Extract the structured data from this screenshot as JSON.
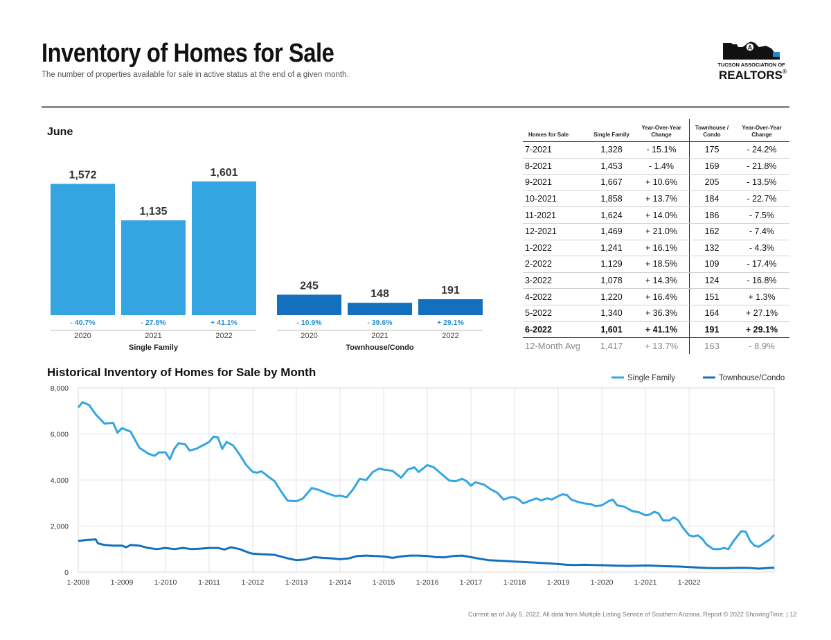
{
  "header": {
    "title": "Inventory of Homes for Sale",
    "subtitle": "The number of properties available for sale in active status at the end of a given month.",
    "logo_line1": "TUCSON ASSOCIATION OF",
    "logo_line2": "REALTORS",
    "logo_mark": "®"
  },
  "colors": {
    "single_family": "#35a5e2",
    "townhouse": "#1370bf",
    "change_text": "#2a8fd0"
  },
  "chart_data": [
    {
      "type": "bar",
      "title": "June",
      "groups": [
        {
          "name": "Single Family",
          "categories": [
            "2020",
            "2021",
            "2022"
          ],
          "values": [
            1572,
            1135,
            1601
          ],
          "value_labels": [
            "1,572",
            "1,135",
            "1,601"
          ],
          "changes": [
            "- 40.7%",
            "- 27.8%",
            "+ 41.1%"
          ]
        },
        {
          "name": "Townhouse/Condo",
          "categories": [
            "2020",
            "2021",
            "2022"
          ],
          "values": [
            245,
            148,
            191
          ],
          "value_labels": [
            "245",
            "148",
            "191"
          ],
          "changes": [
            "- 10.9%",
            "- 39.6%",
            "+ 29.1%"
          ]
        }
      ],
      "ylim": [
        0,
        1700
      ]
    },
    {
      "type": "line",
      "title": "Historical Inventory of Homes for Sale by Month",
      "x_ticks": [
        "1-2008",
        "1-2009",
        "1-2010",
        "1-2011",
        "1-2012",
        "1-2013",
        "1-2014",
        "1-2015",
        "1-2016",
        "1-2017",
        "1-2018",
        "1-2019",
        "1-2020",
        "1-2021",
        "1-2022"
      ],
      "y_ticks": [
        "0",
        "2,000",
        "4,000",
        "6,000",
        "8,000"
      ],
      "ylim": [
        0,
        8000
      ],
      "legend_position": "top-right",
      "series": [
        {
          "name": "Single Family",
          "points": [
            [
              2008.0,
              7150
            ],
            [
              2008.1,
              7380
            ],
            [
              2008.25,
              7250
            ],
            [
              2008.4,
              6850
            ],
            [
              2008.6,
              6450
            ],
            [
              2008.8,
              6480
            ],
            [
              2008.9,
              6050
            ],
            [
              2009.0,
              6250
            ],
            [
              2009.2,
              6100
            ],
            [
              2009.4,
              5400
            ],
            [
              2009.6,
              5150
            ],
            [
              2009.75,
              5050
            ],
            [
              2009.85,
              5200
            ],
            [
              2010.0,
              5200
            ],
            [
              2010.1,
              4900
            ],
            [
              2010.2,
              5350
            ],
            [
              2010.3,
              5600
            ],
            [
              2010.45,
              5550
            ],
            [
              2010.55,
              5280
            ],
            [
              2010.7,
              5350
            ],
            [
              2010.9,
              5550
            ],
            [
              2011.0,
              5650
            ],
            [
              2011.1,
              5880
            ],
            [
              2011.2,
              5850
            ],
            [
              2011.3,
              5350
            ],
            [
              2011.4,
              5650
            ],
            [
              2011.55,
              5500
            ],
            [
              2011.7,
              5100
            ],
            [
              2011.85,
              4650
            ],
            [
              2012.0,
              4350
            ],
            [
              2012.1,
              4320
            ],
            [
              2012.2,
              4380
            ],
            [
              2012.35,
              4150
            ],
            [
              2012.5,
              3950
            ],
            [
              2012.65,
              3500
            ],
            [
              2012.8,
              3100
            ],
            [
              2013.0,
              3080
            ],
            [
              2013.15,
              3200
            ],
            [
              2013.35,
              3650
            ],
            [
              2013.5,
              3580
            ],
            [
              2013.7,
              3420
            ],
            [
              2013.9,
              3300
            ],
            [
              2014.0,
              3320
            ],
            [
              2014.15,
              3250
            ],
            [
              2014.3,
              3600
            ],
            [
              2014.45,
              4050
            ],
            [
              2014.6,
              4000
            ],
            [
              2014.75,
              4350
            ],
            [
              2014.9,
              4500
            ],
            [
              2015.0,
              4450
            ],
            [
              2015.2,
              4400
            ],
            [
              2015.4,
              4100
            ],
            [
              2015.55,
              4450
            ],
            [
              2015.7,
              4550
            ],
            [
              2015.8,
              4350
            ],
            [
              2016.0,
              4650
            ],
            [
              2016.15,
              4550
            ],
            [
              2016.3,
              4300
            ],
            [
              2016.5,
              3980
            ],
            [
              2016.65,
              3950
            ],
            [
              2016.8,
              4050
            ],
            [
              2016.9,
              3950
            ],
            [
              2017.0,
              3750
            ],
            [
              2017.1,
              3900
            ],
            [
              2017.3,
              3800
            ],
            [
              2017.45,
              3600
            ],
            [
              2017.6,
              3450
            ],
            [
              2017.75,
              3150
            ],
            [
              2017.9,
              3250
            ],
            [
              2018.0,
              3250
            ],
            [
              2018.1,
              3150
            ],
            [
              2018.2,
              2980
            ],
            [
              2018.35,
              3100
            ],
            [
              2018.5,
              3200
            ],
            [
              2018.6,
              3120
            ],
            [
              2018.75,
              3200
            ],
            [
              2018.85,
              3150
            ],
            [
              2019.0,
              3300
            ],
            [
              2019.1,
              3380
            ],
            [
              2019.2,
              3350
            ],
            [
              2019.3,
              3150
            ],
            [
              2019.45,
              3050
            ],
            [
              2019.6,
              2980
            ],
            [
              2019.75,
              2950
            ],
            [
              2019.85,
              2870
            ],
            [
              2020.0,
              2900
            ],
            [
              2020.15,
              3080
            ],
            [
              2020.25,
              3150
            ],
            [
              2020.35,
              2900
            ],
            [
              2020.5,
              2850
            ],
            [
              2020.7,
              2650
            ],
            [
              2020.85,
              2600
            ],
            [
              2021.0,
              2470
            ],
            [
              2021.1,
              2500
            ],
            [
              2021.2,
              2620
            ],
            [
              2021.3,
              2550
            ],
            [
              2021.4,
              2250
            ],
            [
              2021.55,
              2250
            ],
            [
              2021.65,
              2380
            ],
            [
              2021.75,
              2250
            ],
            [
              2021.85,
              1950
            ],
            [
              2022.0,
              1600
            ],
            [
              2022.1,
              1550
            ],
            [
              2022.2,
              1600
            ],
            [
              2022.3,
              1450
            ],
            [
              2022.4,
              1200
            ],
            [
              2022.55,
              1000
            ],
            [
              2022.7,
              1000
            ],
            [
              2022.8,
              1050
            ],
            [
              2022.9,
              1000
            ],
            [
              2023.0,
              1300
            ],
            [
              2023.1,
              1550
            ],
            [
              2023.2,
              1780
            ],
            [
              2023.3,
              1750
            ],
            [
              2023.4,
              1350
            ],
            [
              2023.5,
              1150
            ],
            [
              2023.6,
              1100
            ],
            [
              2023.75,
              1300
            ],
            [
              2023.85,
              1420
            ],
            [
              2023.95,
              1620
            ]
          ]
        },
        {
          "name": "Townhouse/Condo",
          "points": [
            [
              2008.0,
              1350
            ],
            [
              2008.2,
              1400
            ],
            [
              2008.4,
              1420
            ],
            [
              2008.45,
              1250
            ],
            [
              2008.6,
              1180
            ],
            [
              2008.8,
              1150
            ],
            [
              2009.0,
              1150
            ],
            [
              2009.1,
              1080
            ],
            [
              2009.2,
              1180
            ],
            [
              2009.4,
              1150
            ],
            [
              2009.6,
              1050
            ],
            [
              2009.8,
              1000
            ],
            [
              2010.0,
              1050
            ],
            [
              2010.2,
              1000
            ],
            [
              2010.4,
              1050
            ],
            [
              2010.6,
              1000
            ],
            [
              2010.8,
              1020
            ],
            [
              2011.0,
              1050
            ],
            [
              2011.2,
              1050
            ],
            [
              2011.35,
              980
            ],
            [
              2011.5,
              1080
            ],
            [
              2011.7,
              1000
            ],
            [
              2011.9,
              850
            ],
            [
              2012.0,
              800
            ],
            [
              2012.2,
              780
            ],
            [
              2012.5,
              750
            ],
            [
              2012.8,
              600
            ],
            [
              2013.0,
              520
            ],
            [
              2013.2,
              550
            ],
            [
              2013.4,
              650
            ],
            [
              2013.6,
              620
            ],
            [
              2013.8,
              600
            ],
            [
              2014.0,
              560
            ],
            [
              2014.2,
              600
            ],
            [
              2014.4,
              700
            ],
            [
              2014.6,
              720
            ],
            [
              2014.8,
              700
            ],
            [
              2015.0,
              680
            ],
            [
              2015.2,
              620
            ],
            [
              2015.4,
              680
            ],
            [
              2015.6,
              720
            ],
            [
              2015.8,
              720
            ],
            [
              2016.0,
              700
            ],
            [
              2016.2,
              650
            ],
            [
              2016.4,
              640
            ],
            [
              2016.6,
              700
            ],
            [
              2016.8,
              720
            ],
            [
              2017.0,
              650
            ],
            [
              2017.2,
              580
            ],
            [
              2017.4,
              520
            ],
            [
              2017.6,
              500
            ],
            [
              2017.8,
              480
            ],
            [
              2018.0,
              460
            ],
            [
              2018.2,
              440
            ],
            [
              2018.4,
              420
            ],
            [
              2018.6,
              400
            ],
            [
              2018.8,
              380
            ],
            [
              2019.0,
              350
            ],
            [
              2019.2,
              320
            ],
            [
              2019.4,
              310
            ],
            [
              2019.6,
              320
            ],
            [
              2019.8,
              310
            ],
            [
              2020.0,
              300
            ],
            [
              2020.2,
              290
            ],
            [
              2020.4,
              280
            ],
            [
              2020.6,
              270
            ],
            [
              2020.8,
              280
            ],
            [
              2021.0,
              290
            ],
            [
              2021.2,
              280
            ],
            [
              2021.4,
              260
            ],
            [
              2021.6,
              250
            ],
            [
              2021.8,
              240
            ],
            [
              2022.0,
              220
            ],
            [
              2022.2,
              200
            ],
            [
              2022.4,
              180
            ],
            [
              2022.6,
              170
            ],
            [
              2022.8,
              170
            ],
            [
              2023.0,
              180
            ],
            [
              2023.2,
              190
            ],
            [
              2023.4,
              180
            ],
            [
              2023.6,
              150
            ],
            [
              2023.8,
              180
            ],
            [
              2023.95,
              191
            ]
          ]
        }
      ]
    }
  ],
  "table": {
    "headers": [
      "Homes for Sale",
      "Single Family",
      "Year-Over-Year Change",
      "Townhouse / Condo",
      "Year-Over-Year Change"
    ],
    "rows": [
      [
        "7-2021",
        "1,328",
        "- 15.1%",
        "175",
        "- 24.2%"
      ],
      [
        "8-2021",
        "1,453",
        "- 1.4%",
        "169",
        "- 21.8%"
      ],
      [
        "9-2021",
        "1,667",
        "+ 10.6%",
        "205",
        "- 13.5%"
      ],
      [
        "10-2021",
        "1,858",
        "+ 13.7%",
        "184",
        "- 22.7%"
      ],
      [
        "11-2021",
        "1,624",
        "+ 14.0%",
        "186",
        "- 7.5%"
      ],
      [
        "12-2021",
        "1,469",
        "+ 21.0%",
        "162",
        "- 7.4%"
      ],
      [
        "1-2022",
        "1,241",
        "+ 16.1%",
        "132",
        "- 4.3%"
      ],
      [
        "2-2022",
        "1,129",
        "+ 18.5%",
        "109",
        "- 17.4%"
      ],
      [
        "3-2022",
        "1,078",
        "+ 14.3%",
        "124",
        "- 16.8%"
      ],
      [
        "4-2022",
        "1,220",
        "+ 16.4%",
        "151",
        "+ 1.3%"
      ],
      [
        "5-2022",
        "1,340",
        "+ 36.3%",
        "164",
        "+ 27.1%"
      ],
      [
        "6-2022",
        "1,601",
        "+ 41.1%",
        "191",
        "+ 29.1%"
      ]
    ],
    "average": [
      "12-Month Avg",
      "1,417",
      "+ 13.7%",
      "163",
      "- 8.9%"
    ]
  },
  "footer": "Current as of July 5, 2022. All data from Multiple Listing Service of Southern Arizona. Report © 2022 ShowingTime.  |  12"
}
